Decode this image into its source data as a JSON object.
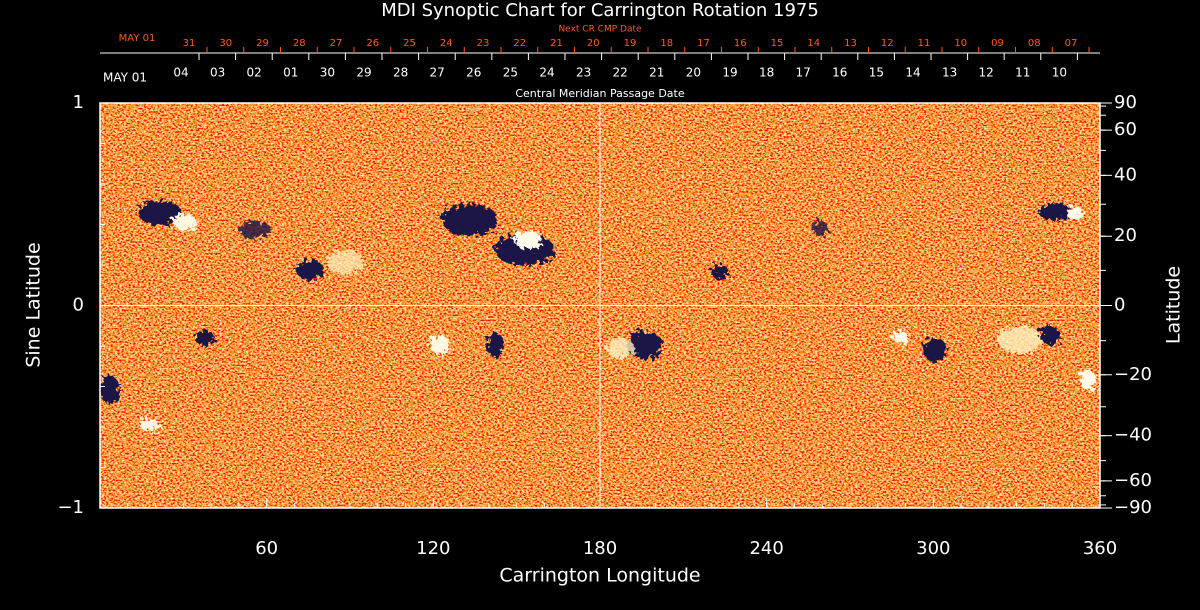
{
  "chart_data": {
    "type": "synoptic",
    "title": "MDI Synoptic Chart for Carrington Rotation 1975",
    "xlabel": "Carrington Longitude",
    "ylabel": "Sine Latitude",
    "y2label": "Latitude",
    "xlim": [
      0,
      360
    ],
    "xticks": [
      60,
      120,
      180,
      240,
      300,
      360
    ],
    "ylim": [
      -1,
      1
    ],
    "yticks": [
      {
        "value": -1,
        "label": "−1"
      },
      0,
      1
    ],
    "y2scale": "sine",
    "y2ticks": [
      90,
      60,
      40,
      20,
      0,
      {
        "value": -20,
        "label": "−20"
      },
      {
        "value": -40,
        "label": "−40"
      },
      {
        "value": -60,
        "label": "−60"
      },
      {
        "value": -90,
        "label": "−90"
      }
    ],
    "grid": true,
    "next_cmp_axis": {
      "title": "Next CR CMP Date",
      "labels": [
        "MAY 01",
        "31",
        "30",
        "29",
        "28",
        "27",
        "26",
        "25",
        "24",
        "23",
        "22",
        "21",
        "20",
        "19",
        "18",
        "17",
        "16",
        "15",
        "14",
        "13",
        "12",
        "11",
        "10",
        "09",
        "08",
        "07"
      ]
    },
    "cmp_axis": {
      "title": "Central Meridian Passage Date",
      "labels": [
        "MAY 01",
        "04",
        "03",
        "02",
        "01",
        "30",
        "29",
        "28",
        "27",
        "26",
        "25",
        "24",
        "23",
        "22",
        "21",
        "20",
        "19",
        "18",
        "17",
        "16",
        "15",
        "14",
        "13",
        "12",
        "11",
        "10"
      ]
    }
  }
}
